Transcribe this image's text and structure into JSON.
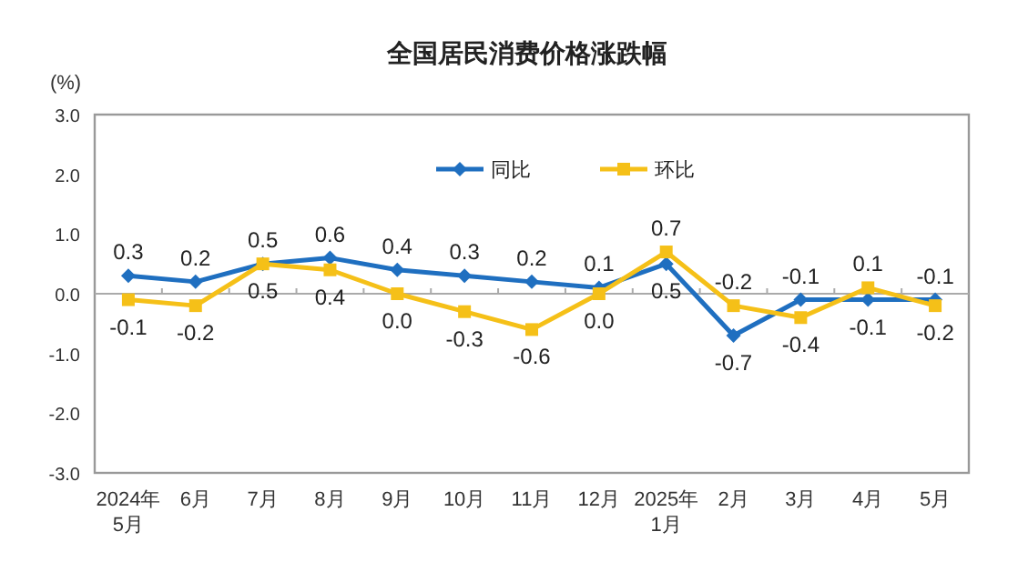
{
  "chart_data": {
    "type": "line",
    "title": "全国居民消费价格涨跌幅",
    "ylabel": "(%)",
    "categories": [
      "2024年\n5月",
      "6月",
      "7月",
      "8月",
      "9月",
      "10月",
      "11月",
      "12月",
      "2025年\n1月",
      "2月",
      "3月",
      "4月",
      "5月"
    ],
    "series": [
      {
        "name": "同比",
        "color": "#1f6fc0",
        "marker": "diamond",
        "values": [
          0.3,
          0.2,
          0.5,
          0.6,
          0.4,
          0.3,
          0.2,
          0.1,
          0.5,
          -0.7,
          -0.1,
          -0.1,
          -0.1
        ],
        "value_labels": [
          "0.3",
          "0.2",
          "0.5",
          "0.6",
          "0.4",
          "0.3",
          "0.2",
          "0.1",
          "0.5",
          "-0.7",
          "-0.1",
          "-0.1",
          "-0.1"
        ]
      },
      {
        "name": "环比",
        "color": "#f5c018",
        "marker": "square",
        "values": [
          -0.1,
          -0.2,
          0.5,
          0.4,
          0.0,
          -0.3,
          -0.6,
          0.0,
          0.7,
          -0.2,
          -0.4,
          0.1,
          -0.2
        ],
        "value_labels": [
          "-0.1",
          "-0.2",
          "0.5",
          "0.4",
          "0.0",
          "-0.3",
          "-0.6",
          "0.0",
          "0.7",
          "-0.2",
          "-0.4",
          "0.1",
          "-0.2"
        ]
      }
    ],
    "ylim": [
      -3,
      3
    ],
    "yticks": [
      {
        "value": 3,
        "label": "3.0"
      },
      {
        "value": 2,
        "label": "2.0"
      },
      {
        "value": 1,
        "label": "1.0"
      },
      {
        "value": 0,
        "label": "0.0"
      },
      {
        "value": -1,
        "label": "-1.0"
      },
      {
        "value": -2,
        "label": "-2.0"
      },
      {
        "value": -3,
        "label": "-3.0"
      }
    ],
    "legend": "top"
  }
}
